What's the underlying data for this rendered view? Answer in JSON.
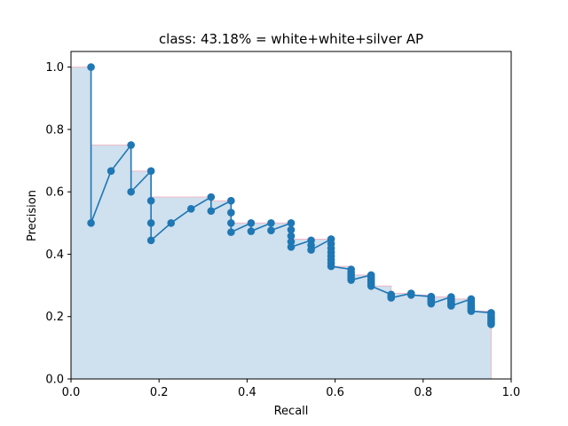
{
  "chart_data": {
    "type": "line",
    "title": "class: 43.18% = white+white+silver AP",
    "xlabel": "Recall",
    "ylabel": "Precision",
    "xlim": [
      0.0,
      1.0
    ],
    "ylim": [
      0.0,
      1.05
    ],
    "xticks": [
      "0.0",
      "0.2",
      "0.4",
      "0.6",
      "0.8",
      "1.0"
    ],
    "yticks": [
      "0.0",
      "0.2",
      "0.4",
      "0.6",
      "0.8",
      "1.0"
    ],
    "grid": false,
    "colors": {
      "line": "#1f77b4",
      "fill": "#cfe0ee",
      "envelope": "#f0b8c8"
    },
    "series": [
      {
        "x": [
          0.0455,
          0.0455,
          0.0909,
          0.1364,
          0.1364,
          0.1818,
          0.1818,
          0.1818,
          0.1818,
          0.2273,
          0.2727,
          0.3182,
          0.3182,
          0.3636,
          0.3636,
          0.3636,
          0.3636,
          0.4091,
          0.4091,
          0.4545,
          0.4545,
          0.5,
          0.5,
          0.5,
          0.5,
          0.5,
          0.5455,
          0.5455,
          0.5455,
          0.5909,
          0.5909,
          0.5909,
          0.5909,
          0.5909,
          0.5909,
          0.5909,
          0.5909,
          0.6364,
          0.6364,
          0.6364,
          0.6364,
          0.6364,
          0.6818,
          0.6818,
          0.6818,
          0.6818,
          0.6818,
          0.6818,
          0.7273,
          0.7273,
          0.7273,
          0.7727,
          0.7727,
          0.8182,
          0.8182,
          0.8182,
          0.8182,
          0.8182,
          0.8182,
          0.8636,
          0.8636,
          0.8636,
          0.8636,
          0.8636,
          0.8636,
          0.8636,
          0.8636,
          0.9091,
          0.9091,
          0.9091,
          0.9091,
          0.9091,
          0.9091,
          0.9091,
          0.9091,
          0.9545,
          0.9545,
          0.9545,
          0.9545,
          0.9545,
          0.9545,
          0.9545,
          0.9545
        ],
        "y": [
          1.0,
          0.5,
          0.6667,
          0.75,
          0.6,
          0.6667,
          0.5714,
          0.5,
          0.4444,
          0.5,
          0.5455,
          0.5833,
          0.5385,
          0.5714,
          0.5333,
          0.5,
          0.4706,
          0.5,
          0.4737,
          0.5,
          0.4762,
          0.5,
          0.4783,
          0.4583,
          0.44,
          0.4231,
          0.4444,
          0.4286,
          0.4138,
          0.4483,
          0.4333,
          0.4194,
          0.4063,
          0.3939,
          0.3824,
          0.3714,
          0.3611,
          0.3514,
          0.3421,
          0.3333,
          0.325,
          0.3171,
          0.3333,
          0.3256,
          0.3182,
          0.3111,
          0.3043,
          0.2979,
          0.2708,
          0.2653,
          0.26,
          0.2745,
          0.2692,
          0.2642,
          0.2593,
          0.2545,
          0.25,
          0.2456,
          0.2414,
          0.2632,
          0.2586,
          0.2542,
          0.25,
          0.2459,
          0.2419,
          0.2381,
          0.2344,
          0.2564,
          0.25,
          0.2439,
          0.2381,
          0.2326,
          0.2273,
          0.2222,
          0.2174,
          0.2121,
          0.2059,
          0.2,
          0.1944,
          0.1892,
          0.1842,
          0.1795,
          0.175
        ]
      }
    ]
  }
}
